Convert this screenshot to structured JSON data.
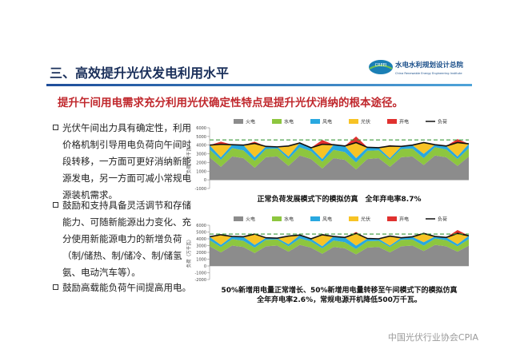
{
  "header": {
    "title": "三、高效提升光伏发电利用水平"
  },
  "logo": {
    "badge": "CREEI",
    "name": "水电水利规划设计总院",
    "english": "China Renewable Energy Engineering Institute"
  },
  "subtitle": "提升午间用电需求充分利用光伏确定性特点是提升光伏消纳的根本途径。",
  "bullets": [
    "光伏午间出力具有确定性，利用价格机制引导用电负荷向午间时段转移，一方面可更好消纳新能源发电，另一方面可减小常规电源装机需求。",
    "鼓励和支持具备灵活调节和存储能力、可随新能源出力变化、充分使用新能源电力的新增负荷（制/储热、制/储冷、制/储氢氨、电动汽车等）。",
    "鼓励高载能负荷午间提高用电。"
  ],
  "watermark": "中国光伏行业协会CPIA",
  "chart_data": [
    {
      "type": "area",
      "y_label": "负荷（万千瓦）",
      "caption": [
        "正常负荷发展模式下的模拟仿真　全年弃电率8.7%"
      ],
      "x": [
        1,
        9,
        17,
        25,
        33,
        41,
        49,
        57,
        65,
        73,
        81,
        89,
        97,
        105,
        113,
        121,
        129,
        137,
        145,
        153,
        161,
        169,
        177,
        185
      ],
      "xlim": [
        1,
        185
      ],
      "ylim": [
        -1000,
        6000
      ],
      "yticks": [
        -1000,
        0,
        1000,
        2000,
        3000,
        4000,
        5000,
        6000
      ],
      "hline": 4600,
      "hline_color": "#3a9a3a",
      "series": [
        {
          "name": "火电",
          "color": "#8c8c8c",
          "values": [
            2600,
            1500,
            2700,
            2500,
            1400,
            2600,
            2700,
            1600,
            2800,
            2400,
            1300,
            2500,
            2300,
            1200,
            2400,
            2500,
            1500,
            2600,
            2700,
            1700,
            2800,
            2600,
            1600,
            2700
          ]
        },
        {
          "name": "水电",
          "color": "#8dc63f",
          "values": [
            900,
            800,
            950,
            900,
            800,
            950,
            900,
            800,
            950,
            900,
            800,
            950,
            900,
            800,
            950,
            900,
            800,
            950,
            900,
            800,
            950,
            900,
            800,
            950
          ]
        },
        {
          "name": "风电",
          "color": "#29a8e0",
          "values": [
            500,
            300,
            400,
            600,
            400,
            300,
            200,
            300,
            500,
            400,
            300,
            600,
            700,
            500,
            400,
            300,
            200,
            300,
            400,
            500,
            300,
            400,
            300,
            500
          ]
        },
        {
          "name": "光伏",
          "color": "#f7c325",
          "values": [
            0,
            1500,
            0,
            0,
            1600,
            0,
            0,
            1200,
            0,
            0,
            1700,
            0,
            0,
            1800,
            0,
            0,
            1400,
            0,
            0,
            1300,
            0,
            0,
            1600,
            0
          ]
        },
        {
          "name": "弃电",
          "color": "#e0312f",
          "values": [
            0,
            300,
            0,
            0,
            200,
            0,
            0,
            0,
            0,
            0,
            500,
            0,
            0,
            700,
            0,
            0,
            100,
            0,
            0,
            0,
            0,
            0,
            400,
            0
          ]
        }
      ],
      "load": {
        "name": "负荷",
        "color": "#111111",
        "values": [
          4000,
          4100,
          4050,
          4000,
          4200,
          3850,
          3800,
          3900,
          4250,
          3700,
          4100,
          4050,
          3900,
          4300,
          3750,
          3700,
          3900,
          3850,
          4000,
          4300,
          4050,
          3900,
          4300,
          4150
        ]
      }
    },
    {
      "type": "area",
      "y_label": "负荷（万千瓦）",
      "caption": [
        "50%新增用电量正常增长、50%新增用电量转移至午间模式下的模拟仿真",
        "全年弃电率2.6%，常规电源开机降低500万千瓦。"
      ],
      "x": [
        1,
        9,
        17,
        25,
        33,
        41,
        49,
        57,
        65,
        73,
        81,
        89,
        97,
        105,
        113,
        121,
        129,
        137,
        145,
        153,
        161,
        169,
        177,
        185
      ],
      "xlim": [
        1,
        185
      ],
      "ylim": [
        -2000,
        6000
      ],
      "yticks": [
        -2000,
        -1000,
        0,
        1000,
        2000,
        3000,
        4000,
        5000,
        6000
      ],
      "hline": 4700,
      "hline_color": "#3a9a3a",
      "series": [
        {
          "name": "火电",
          "color": "#8c8c8c",
          "values": [
            2900,
            2000,
            3000,
            2800,
            1900,
            2900,
            3000,
            2100,
            3100,
            2700,
            1800,
            2800,
            2600,
            1700,
            2700,
            2800,
            2000,
            2900,
            3000,
            2200,
            3100,
            2900,
            2100,
            3000
          ]
        },
        {
          "name": "水电",
          "color": "#8dc63f",
          "values": [
            900,
            800,
            950,
            900,
            800,
            950,
            900,
            800,
            950,
            900,
            800,
            950,
            900,
            800,
            950,
            900,
            800,
            950,
            900,
            800,
            950,
            900,
            800,
            950
          ]
        },
        {
          "name": "风电",
          "color": "#29a8e0",
          "values": [
            500,
            300,
            400,
            600,
            400,
            300,
            200,
            300,
            500,
            400,
            300,
            600,
            700,
            500,
            400,
            300,
            200,
            300,
            400,
            500,
            300,
            400,
            300,
            500
          ]
        },
        {
          "name": "光伏",
          "color": "#f7c325",
          "values": [
            0,
            1500,
            0,
            0,
            1600,
            0,
            0,
            1200,
            0,
            0,
            1700,
            0,
            0,
            1800,
            0,
            0,
            1400,
            0,
            0,
            1300,
            0,
            0,
            1600,
            0
          ]
        },
        {
          "name": "弃电",
          "color": "#e0312f",
          "values": [
            0,
            0,
            0,
            0,
            0,
            0,
            0,
            0,
            0,
            0,
            100,
            0,
            0,
            200,
            0,
            0,
            0,
            0,
            0,
            0,
            0,
            0,
            500,
            0
          ]
        }
      ],
      "load": {
        "name": "负荷",
        "color": "#111111",
        "values": [
          4300,
          4600,
          4350,
          4300,
          4700,
          4150,
          4100,
          4400,
          4550,
          4000,
          4600,
          4350,
          4200,
          4800,
          4050,
          4000,
          4400,
          4150,
          4300,
          4800,
          4350,
          4200,
          4800,
          4450
        ]
      }
    }
  ]
}
